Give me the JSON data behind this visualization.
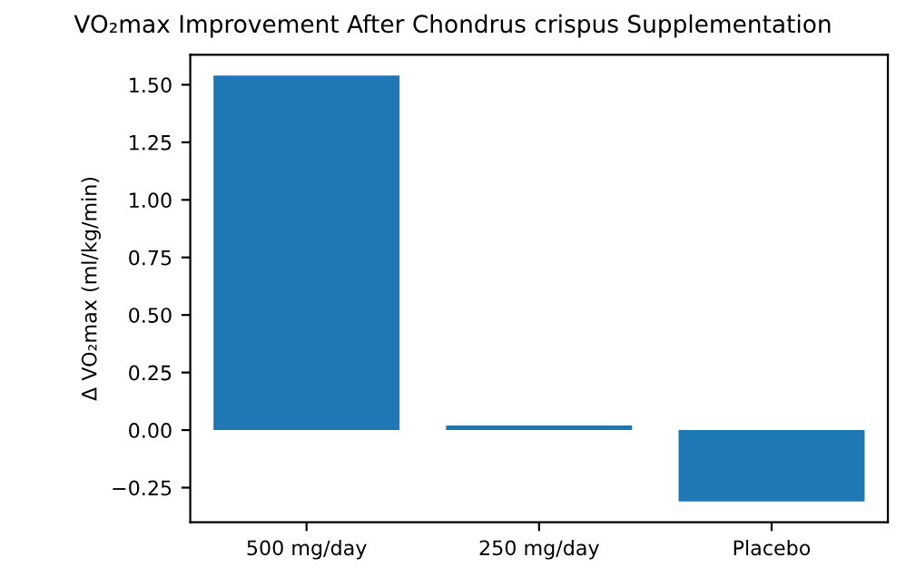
{
  "chart_data": {
    "type": "bar",
    "title": "VO₂max Improvement After Chondrus crispus Supplementation",
    "ylabel": "Δ VO₂max (ml/kg/min)",
    "categories": [
      "500 mg/day",
      "250 mg/day",
      "Placebo"
    ],
    "values": [
      1.54,
      0.02,
      -0.31
    ],
    "color": "#1f77b4",
    "ylim": [
      -0.4,
      1.63
    ],
    "yticks": [
      {
        "value": -0.25,
        "label": "−0.25"
      },
      {
        "value": 0,
        "label": "0.00"
      },
      {
        "value": 0.25,
        "label": "0.25"
      },
      {
        "value": 0.5,
        "label": "0.50"
      },
      {
        "value": 0.75,
        "label": "0.75"
      },
      {
        "value": 1.0,
        "label": "1.00"
      },
      {
        "value": 1.25,
        "label": "1.25"
      },
      {
        "value": 1.5,
        "label": "1.50"
      }
    ],
    "grid": false
  }
}
